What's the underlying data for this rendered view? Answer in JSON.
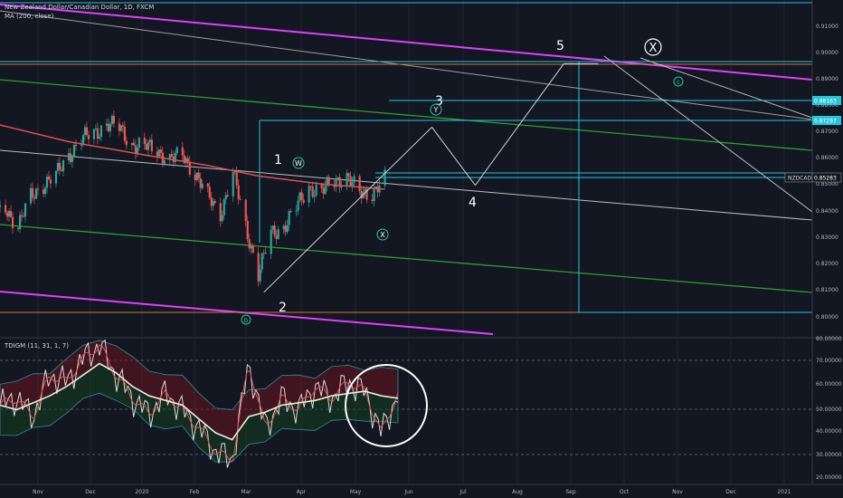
{
  "header": {
    "title": "New Zealand Dollar/Canadian Dollar, 1D, FXCM",
    "ma_label": "MA (200, close)",
    "indicator_label": "TDIGM (11, 31, 1, 7)"
  },
  "colors": {
    "background": "#131722",
    "candle_up": "#26a69a",
    "candle_down": "#ef5350",
    "magenta_channel": "#e040fb",
    "green_channel": "#2e9e2e",
    "ma_line": "#e05050",
    "teal_lines": "#26c6da",
    "orange_line": "#c77a3a",
    "wave_lines": "#d8d8d8"
  },
  "chart_data": [
    {
      "type": "candlestick",
      "symbol": "NZDCAD",
      "title": "New Zealand Dollar/Canadian Dollar, 1D, FXCM",
      "x_ticks": [
        "Nov",
        "Dec",
        "2020",
        "Feb",
        "Mar",
        "Apr",
        "May",
        "Jun",
        "Jul",
        "Aug",
        "Sep",
        "Oct",
        "Nov",
        "Dec",
        "2021"
      ],
      "y_ticks": [
        "0.91000",
        "0.90000",
        "0.89000",
        "0.88000",
        "0.87000",
        "0.86000",
        "0.85000",
        "0.84000",
        "0.83000",
        "0.82000",
        "0.81000",
        "0.80000"
      ],
      "ylim": [
        0.7965,
        0.9145
      ],
      "price_labels": {
        "current": "0.85283",
        "level_a": "0.88163",
        "level_b": "0.87297",
        "symbol": "NZDCAD"
      },
      "close_path": [
        {
          "x": "2019-10-21",
          "y": 0.838
        },
        {
          "x": "2019-10-28",
          "y": 0.842
        },
        {
          "x": "2019-11-04",
          "y": 0.835
        },
        {
          "x": "2019-11-11",
          "y": 0.846
        },
        {
          "x": "2019-11-18",
          "y": 0.851
        },
        {
          "x": "2019-11-25",
          "y": 0.854
        },
        {
          "x": "2019-12-02",
          "y": 0.862
        },
        {
          "x": "2019-12-09",
          "y": 0.868
        },
        {
          "x": "2019-12-16",
          "y": 0.87
        },
        {
          "x": "2019-12-23",
          "y": 0.874
        },
        {
          "x": "2019-12-30",
          "y": 0.872
        },
        {
          "x": "2020-01-06",
          "y": 0.866
        },
        {
          "x": "2020-01-13",
          "y": 0.865
        },
        {
          "x": "2020-01-20",
          "y": 0.864
        },
        {
          "x": "2020-01-27",
          "y": 0.86
        },
        {
          "x": "2020-02-03",
          "y": 0.862
        },
        {
          "x": "2020-02-10",
          "y": 0.855
        },
        {
          "x": "2020-02-17",
          "y": 0.846
        },
        {
          "x": "2020-02-24",
          "y": 0.84
        },
        {
          "x": "2020-03-02",
          "y": 0.855
        },
        {
          "x": "2020-03-09",
          "y": 0.835
        },
        {
          "x": "2020-03-16",
          "y": 0.817
        },
        {
          "x": "2020-03-23",
          "y": 0.832
        },
        {
          "x": "2020-03-30",
          "y": 0.835
        },
        {
          "x": "2020-04-06",
          "y": 0.842
        },
        {
          "x": "2020-04-13",
          "y": 0.85
        },
        {
          "x": "2020-04-20",
          "y": 0.848
        },
        {
          "x": "2020-04-27",
          "y": 0.852
        },
        {
          "x": "2020-05-04",
          "y": 0.854
        },
        {
          "x": "2020-05-11",
          "y": 0.847
        },
        {
          "x": "2020-05-18",
          "y": 0.848
        },
        {
          "x": "2020-05-25",
          "y": 0.8528
        }
      ],
      "moving_average_200": [
        {
          "x": "2019-10-21",
          "y": 0.874
        },
        {
          "x": "2019-12-02",
          "y": 0.867
        },
        {
          "x": "2020-01-13",
          "y": 0.862
        },
        {
          "x": "2020-02-17",
          "y": 0.858
        },
        {
          "x": "2020-03-16",
          "y": 0.854
        },
        {
          "x": "2020-04-20",
          "y": 0.851
        },
        {
          "x": "2020-05-25",
          "y": 0.849
        }
      ],
      "elliott_wave_projection": [
        {
          "label": "2",
          "x": "2020-03-19",
          "y": 0.81
        },
        {
          "label": "3",
          "x": "2020-06-20",
          "y": 0.8725
        },
        {
          "label": "4",
          "x": "2020-07-14",
          "y": 0.8505
        },
        {
          "label": "5",
          "x": "2020-09-01",
          "y": 0.8965
        },
        {
          "label": "X-end",
          "x": "2020-09-20",
          "y": 0.8965
        }
      ],
      "wave_labels": [
        "1",
        "2",
        "3",
        "4",
        "5"
      ],
      "circled_labels": [
        "W",
        "X",
        "Y",
        "X",
        "b",
        "c"
      ]
    },
    {
      "type": "line",
      "title": "TDIGM (11, 31, 1, 7)",
      "y_ticks": [
        "80.00000",
        "70.00000",
        "60.00000",
        "50.00000",
        "40.00000",
        "30.00000",
        "20.00000"
      ],
      "ylim": [
        18,
        81.5
      ],
      "reference_levels": [
        70,
        50,
        30
      ],
      "series": [
        {
          "values": [
            52,
            50,
            53,
            56,
            60,
            65,
            70,
            66,
            60,
            56,
            54,
            52,
            46,
            40,
            37,
            47,
            49,
            52,
            53,
            54,
            56,
            57,
            58,
            56,
            55
          ]
        },
        {
          "values": [
            52,
            55,
            47,
            65,
            62,
            72,
            78,
            65,
            55,
            48,
            57,
            50,
            42,
            32,
            28,
            70,
            42,
            55,
            50,
            60,
            55,
            62,
            58,
            40,
            57
          ]
        }
      ]
    }
  ]
}
